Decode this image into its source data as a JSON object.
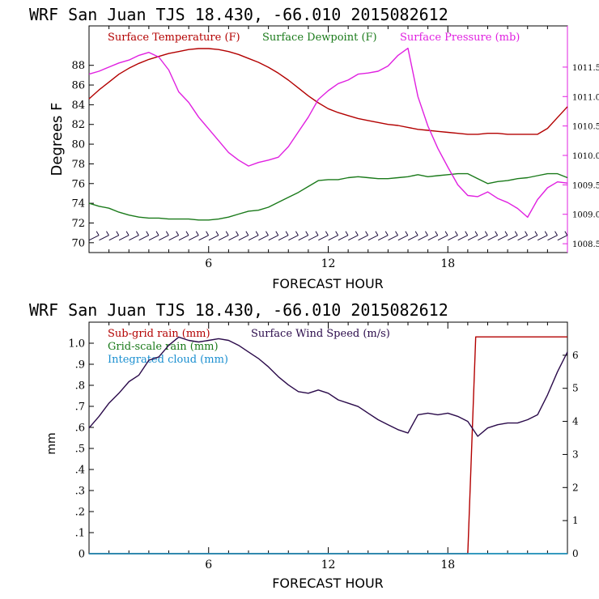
{
  "chart_data": [
    {
      "type": "line",
      "title": "WRF   San Juan TJS  18.430, -66.010  2015082612",
      "xlabel": "FORECAST HOUR",
      "ylabel": "Degrees F",
      "xlim": [
        0,
        24
      ],
      "ylim": [
        69,
        92
      ],
      "y2lim": [
        1008.35,
        1012.2
      ],
      "x_ticks": [
        6,
        12,
        18
      ],
      "x_tick_labels": [
        "6",
        "12",
        "18"
      ],
      "y_ticks": [
        70,
        72,
        74,
        76,
        78,
        80,
        82,
        84,
        86,
        88
      ],
      "y_tick_labels": [
        "70",
        "72",
        "74",
        "76",
        "78",
        "80",
        "82",
        "84",
        "86",
        "88"
      ],
      "y2_ticks": [
        1008.5,
        1009.0,
        1009.5,
        1010.0,
        1010.5,
        1011.0,
        1011.5
      ],
      "y2_tick_labels": [
        "1008.5",
        "1009.0",
        "1009.5",
        "1010.0",
        "1010.5",
        "1011.0",
        "1011.5"
      ],
      "legend": [
        "Surface Temperature (F)",
        "Surface Dewpoint (F)",
        "Surface Pressure (mb)"
      ],
      "legend_placement": "top",
      "grid": false,
      "series": [
        {
          "name": "Surface Temperature (F)",
          "color": "#b30000",
          "axis": "left",
          "x": [
            0,
            0.5,
            1,
            1.5,
            2,
            2.5,
            3,
            3.5,
            4,
            4.5,
            5,
            5.5,
            6,
            6.5,
            7,
            7.5,
            8,
            8.5,
            9,
            9.5,
            10,
            10.5,
            11,
            11.5,
            12,
            12.5,
            13,
            13.5,
            14,
            14.5,
            15,
            15.5,
            16,
            16.5,
            17,
            17.5,
            18,
            18.5,
            19,
            19.5,
            20,
            20.5,
            21,
            21.5,
            22,
            22.5,
            23,
            23.5,
            24
          ],
          "y": [
            84.6,
            85.5,
            86.3,
            87.1,
            87.7,
            88.2,
            88.6,
            88.9,
            89.2,
            89.4,
            89.6,
            89.7,
            89.7,
            89.6,
            89.4,
            89.1,
            88.7,
            88.3,
            87.8,
            87.2,
            86.5,
            85.7,
            84.9,
            84.2,
            83.6,
            83.2,
            82.9,
            82.6,
            82.4,
            82.2,
            82.0,
            81.9,
            81.7,
            81.5,
            81.4,
            81.3,
            81.2,
            81.1,
            81.0,
            81.0,
            81.1,
            81.1,
            81.0,
            81.0,
            81.0,
            81.0,
            81.6,
            82.7,
            83.8
          ]
        },
        {
          "name": "Surface Dewpoint (F)",
          "color": "#1a7a1a",
          "axis": "left",
          "x": [
            0,
            0.5,
            1,
            1.5,
            2,
            2.5,
            3,
            3.5,
            4,
            4.5,
            5,
            5.5,
            6,
            6.5,
            7,
            7.5,
            8,
            8.5,
            9,
            9.5,
            10,
            10.5,
            11,
            11.5,
            12,
            12.5,
            13,
            13.5,
            14,
            14.5,
            15,
            15.5,
            16,
            16.5,
            17,
            17.5,
            18,
            18.5,
            19,
            19.5,
            20,
            20.5,
            21,
            21.5,
            22,
            22.5,
            23,
            23.5,
            24
          ],
          "y": [
            74.0,
            73.7,
            73.5,
            73.1,
            72.8,
            72.6,
            72.5,
            72.5,
            72.4,
            72.4,
            72.4,
            72.3,
            72.3,
            72.4,
            72.6,
            72.9,
            73.2,
            73.3,
            73.6,
            74.1,
            74.6,
            75.1,
            75.7,
            76.3,
            76.4,
            76.4,
            76.6,
            76.7,
            76.6,
            76.5,
            76.5,
            76.6,
            76.7,
            76.9,
            76.7,
            76.8,
            76.9,
            77.0,
            77.0,
            76.5,
            76.0,
            76.2,
            76.3,
            76.5,
            76.6,
            76.8,
            77.0,
            77.0,
            76.6
          ]
        },
        {
          "name": "Surface Pressure (mb)",
          "color": "#e020e0",
          "axis": "right",
          "x": [
            0,
            0.5,
            1,
            1.5,
            2,
            2.5,
            3,
            3.5,
            4,
            4.5,
            5,
            5.5,
            6,
            6.5,
            7,
            7.5,
            8,
            8.5,
            9,
            9.5,
            10,
            10.5,
            11,
            11.5,
            12,
            12.5,
            13,
            13.5,
            14,
            14.5,
            15,
            15.5,
            16,
            16.5,
            17,
            17.5,
            18,
            18.5,
            19,
            19.5,
            20,
            20.5,
            21,
            21.5,
            22,
            22.5,
            23,
            23.5,
            24
          ],
          "y": [
            1011.38,
            1011.43,
            1011.5,
            1011.57,
            1011.62,
            1011.7,
            1011.75,
            1011.67,
            1011.45,
            1011.08,
            1010.9,
            1010.65,
            1010.45,
            1010.25,
            1010.05,
            1009.92,
            1009.82,
            1009.88,
            1009.92,
            1009.97,
            1010.15,
            1010.4,
            1010.65,
            1010.95,
            1011.1,
            1011.22,
            1011.28,
            1011.38,
            1011.4,
            1011.43,
            1011.52,
            1011.7,
            1011.82,
            1011.0,
            1010.5,
            1010.12,
            1009.8,
            1009.5,
            1009.32,
            1009.3,
            1009.38,
            1009.27,
            1009.2,
            1009.1,
            1008.95,
            1009.25,
            1009.45,
            1009.55,
            1009.53
          ]
        }
      ],
      "wind_barbs": {
        "y": 70.5,
        "count": 48
      }
    },
    {
      "type": "line",
      "title": "WRF   San Juan TJS  18.430, -66.010  2015082612",
      "xlabel": "FORECAST HOUR",
      "ylabel": "mm",
      "xlim": [
        0,
        24
      ],
      "ylim": [
        0,
        1.1
      ],
      "y2lim": [
        0,
        7
      ],
      "x_ticks": [
        6,
        12,
        18
      ],
      "x_tick_labels": [
        "6",
        "12",
        "18"
      ],
      "y_ticks": [
        0,
        0.1,
        0.2,
        0.3,
        0.4,
        0.5,
        0.6,
        0.7,
        0.8,
        0.9,
        1.0
      ],
      "y_tick_labels": [
        "0",
        ".1",
        ".2",
        ".3",
        ".4",
        ".5",
        ".6",
        ".7",
        ".8",
        ".9",
        "1.0"
      ],
      "y2_ticks": [
        0,
        1,
        2,
        3,
        4,
        5,
        6
      ],
      "y2_tick_labels": [
        "0",
        "1",
        "2",
        "3",
        "4",
        "5",
        "6"
      ],
      "legend": [
        "Sub-grid rain (mm)",
        "Grid-scale rain (mm)",
        "Integrated cloud (mm)",
        "Surface Wind Speed (m/s)"
      ],
      "legend_placement": "top-left",
      "grid": false,
      "series": [
        {
          "name": "Sub-grid rain (mm)",
          "color": "#b30000",
          "axis": "left",
          "x": [
            0,
            19.0,
            19.4,
            24
          ],
          "y": [
            0,
            0,
            1.03,
            1.03
          ]
        },
        {
          "name": "Grid-scale rain (mm)",
          "color": "#1a7a1a",
          "axis": "left",
          "x": [
            0,
            24
          ],
          "y": [
            0,
            0
          ]
        },
        {
          "name": "Integrated cloud (mm)",
          "color": "#1a8fd0",
          "axis": "left",
          "x": [
            0,
            24
          ],
          "y": [
            0,
            0
          ]
        },
        {
          "name": "Surface Wind Speed (m/s)",
          "color": "#2a0a4a",
          "axis": "right",
          "x": [
            0,
            0.5,
            1,
            1.5,
            2,
            2.5,
            3,
            3.5,
            4,
            4.5,
            5,
            5.5,
            6,
            6.5,
            7,
            7.5,
            8,
            8.5,
            9,
            9.5,
            10,
            10.5,
            11,
            11.5,
            12,
            12.5,
            13,
            13.5,
            14,
            14.5,
            15,
            15.5,
            16,
            16.5,
            17,
            17.5,
            18,
            18.5,
            19,
            19.5,
            20,
            20.5,
            21,
            21.5,
            22,
            22.5,
            23,
            23.5,
            24
          ],
          "y": [
            3.8,
            4.15,
            4.55,
            4.85,
            5.2,
            5.4,
            5.85,
            5.95,
            6.3,
            6.55,
            6.45,
            6.4,
            6.45,
            6.5,
            6.45,
            6.3,
            6.1,
            5.9,
            5.65,
            5.35,
            5.1,
            4.9,
            4.85,
            4.95,
            4.85,
            4.65,
            4.55,
            4.45,
            4.25,
            4.05,
            3.9,
            3.75,
            3.65,
            4.2,
            4.25,
            4.2,
            4.25,
            4.15,
            4.0,
            3.55,
            3.8,
            3.9,
            3.95,
            3.95,
            4.05,
            4.2,
            4.8,
            5.5,
            6.1
          ]
        }
      ]
    }
  ]
}
